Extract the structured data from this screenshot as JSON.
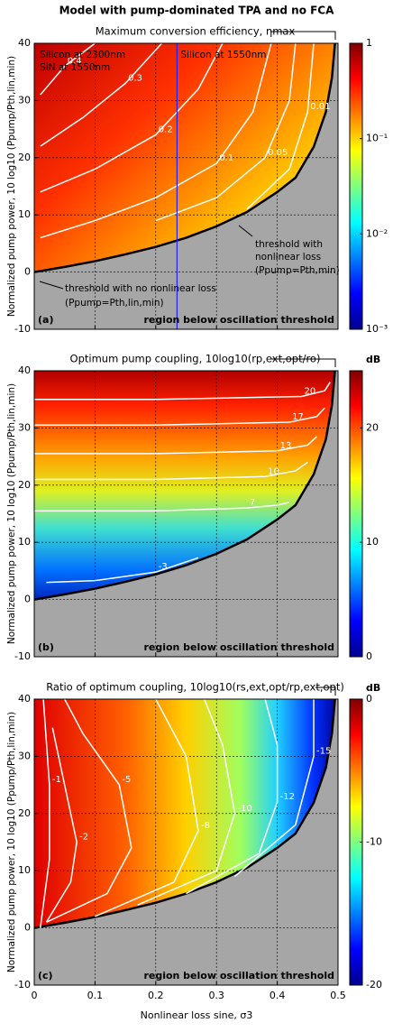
{
  "title": "Model with pump-dominated TPA and no FCA",
  "x_label": "Nonlinear loss sine, σ3",
  "chart_data": [
    {
      "type": "contour",
      "title": "Maximum conversion efficiency, ηmax",
      "y_label": "Normalized pump power, 10 log10 (Ppump/Pth,lin,min)",
      "xlim": [
        0,
        0.5
      ],
      "ylim": [
        -10,
        40
      ],
      "xticks": [
        0,
        0.1,
        0.2,
        0.3,
        0.4,
        0.5
      ],
      "yticks": [
        -10,
        0,
        10,
        20,
        30,
        40
      ],
      "grid": true,
      "colorbar": {
        "scale": "log",
        "lim": [
          0.001,
          1
        ],
        "ticks": [
          {
            "value": 0.001,
            "label": "10⁻³"
          },
          {
            "value": 0.01,
            "label": "10⁻²"
          },
          {
            "value": 0.1,
            "label": "10⁻¹"
          },
          1
        ]
      },
      "boundary": {
        "x": [
          0,
          0.05,
          0.1,
          0.15,
          0.2,
          0.25,
          0.3,
          0.35,
          0.4,
          0.43,
          0.46,
          0.48,
          0.49,
          0.495
        ],
        "y": [
          0,
          0.9,
          1.9,
          3.1,
          4.4,
          6,
          8,
          10.5,
          14,
          16.5,
          21.9,
          28,
          34,
          40
        ]
      },
      "contours": [
        {
          "level": 0.4,
          "x": [
            0.01,
            0.05,
            0.1
          ],
          "y": [
            31,
            36,
            40
          ]
        },
        {
          "level": 0.3,
          "x": [
            0.01,
            0.08,
            0.15,
            0.21
          ],
          "y": [
            22,
            27,
            33,
            40
          ]
        },
        {
          "level": 0.2,
          "x": [
            0.01,
            0.1,
            0.2,
            0.27,
            0.31
          ],
          "y": [
            14,
            18,
            24,
            32,
            40
          ]
        },
        {
          "level": 0.1,
          "x": [
            0.01,
            0.1,
            0.2,
            0.3,
            0.36,
            0.39
          ],
          "y": [
            6,
            9,
            13,
            19,
            28,
            40
          ]
        },
        {
          "level": 0.05,
          "x": [
            0.2,
            0.3,
            0.38,
            0.42,
            0.43
          ],
          "y": [
            9,
            13,
            20,
            30,
            40
          ]
        },
        {
          "level": 0.01,
          "x": [
            0.35,
            0.42,
            0.45,
            0.46
          ],
          "y": [
            11,
            18,
            28,
            40
          ]
        }
      ],
      "reference_line": {
        "x": 0.235,
        "label": "Silicon at 1550nm"
      },
      "annotations": [
        "Silicon at 2300nm",
        "SiN at 1550nm",
        "threshold with",
        "nonlinear loss",
        "(Ppump=Pth,min)",
        "threshold with no nonlinear loss",
        "(Ppump=Pth,lin,min)"
      ],
      "panel_label": "(a)",
      "region_label": "region below oscillation threshold"
    },
    {
      "type": "contour",
      "title": "Optimum pump coupling, 10log10(rp,ext,opt/ro)",
      "y_label": "Normalized pump power, 10 log10 (Ppump/Pth,lin,min)",
      "xlim": [
        0,
        0.5
      ],
      "ylim": [
        -10,
        40
      ],
      "xticks": [
        0,
        0.1,
        0.2,
        0.3,
        0.4,
        0.5
      ],
      "yticks": [
        -10,
        0,
        10,
        20,
        30,
        40
      ],
      "grid": true,
      "colorbar": {
        "scale": "linear",
        "lim": [
          0,
          25
        ],
        "ticks": [
          0,
          10,
          20
        ],
        "unit": "dB"
      },
      "boundary": {
        "x": [
          0,
          0.05,
          0.1,
          0.15,
          0.2,
          0.25,
          0.3,
          0.35,
          0.4,
          0.43,
          0.46,
          0.48,
          0.49,
          0.495
        ],
        "y": [
          0,
          0.9,
          1.9,
          3.1,
          4.4,
          6,
          8,
          10.5,
          14,
          16.5,
          21.9,
          28,
          34,
          40
        ]
      },
      "contours": [
        {
          "level": -3,
          "x": [
            0.02,
            0.1,
            0.2,
            0.27
          ],
          "y": [
            3,
            3.3,
            4.8,
            7.3
          ]
        },
        {
          "level": 7,
          "x": [
            0,
            0.2,
            0.35,
            0.4,
            0.42
          ],
          "y": [
            15.5,
            15.5,
            16,
            16.5,
            17
          ]
        },
        {
          "level": 10,
          "x": [
            0,
            0.2,
            0.38,
            0.43,
            0.45
          ],
          "y": [
            21,
            21,
            21.5,
            22.5,
            24
          ]
        },
        {
          "level": 13,
          "x": [
            0,
            0.2,
            0.4,
            0.45,
            0.465
          ],
          "y": [
            25.5,
            25.5,
            26,
            27,
            28.5
          ]
        },
        {
          "level": 17,
          "x": [
            0,
            0.2,
            0.42,
            0.465,
            0.478
          ],
          "y": [
            30.5,
            30.5,
            31,
            32,
            33.5
          ]
        },
        {
          "level": 20,
          "x": [
            0,
            0.2,
            0.44,
            0.478,
            0.487
          ],
          "y": [
            35,
            35,
            35.5,
            36.5,
            38
          ]
        }
      ],
      "panel_label": "(b)",
      "region_label": "region below oscillation threshold"
    },
    {
      "type": "contour",
      "title": "Ratio of optimum coupling, 10log10(rs,ext,opt/rp,ext,opt)",
      "y_label": "Normalized pump power, 10 log10 (Ppump/Pth,lin,min)",
      "xlim": [
        0,
        0.5
      ],
      "ylim": [
        -10,
        40
      ],
      "xticks": [
        0,
        0.1,
        0.2,
        0.3,
        0.4,
        0.5
      ],
      "yticks": [
        -10,
        0,
        10,
        20,
        30,
        40
      ],
      "grid": true,
      "colorbar": {
        "scale": "linear",
        "lim": [
          -20,
          0
        ],
        "ticks": [
          -20,
          -10,
          0
        ],
        "unit": "dB"
      },
      "boundary": {
        "x": [
          0,
          0.05,
          0.1,
          0.15,
          0.2,
          0.25,
          0.3,
          0.35,
          0.4,
          0.43,
          0.46,
          0.48,
          0.49,
          0.495
        ],
        "y": [
          0,
          0.9,
          1.9,
          3.1,
          4.4,
          6,
          8,
          10.5,
          14,
          16.5,
          21.9,
          28,
          34,
          40
        ]
      },
      "contours": [
        {
          "level": -1,
          "x": [
            0.01,
            0.025,
            0.025,
            0.015
          ],
          "y": [
            0,
            12,
            25,
            40
          ]
        },
        {
          "level": -2,
          "x": [
            0.02,
            0.06,
            0.07,
            0.05,
            0.03
          ],
          "y": [
            1,
            8,
            15,
            25,
            35
          ]
        },
        {
          "level": -5,
          "x": [
            0.02,
            0.12,
            0.16,
            0.14,
            0.08,
            0.05
          ],
          "y": [
            1,
            6,
            14,
            25,
            34,
            40
          ]
        },
        {
          "level": -8,
          "x": [
            0.1,
            0.23,
            0.27,
            0.25,
            0.2
          ],
          "y": [
            2,
            8,
            17,
            30,
            40
          ]
        },
        {
          "level": -10,
          "x": [
            0.17,
            0.3,
            0.33,
            0.31,
            0.28
          ],
          "y": [
            4,
            10,
            20,
            32,
            40
          ]
        },
        {
          "level": -12,
          "x": [
            0.25,
            0.37,
            0.4,
            0.4,
            0.38
          ],
          "y": [
            6,
            13,
            22,
            32,
            40
          ]
        },
        {
          "level": -15,
          "x": [
            0.33,
            0.43,
            0.46,
            0.46
          ],
          "y": [
            9,
            18,
            30,
            40
          ]
        }
      ],
      "panel_label": "(c)",
      "region_label": "region below oscillation threshold"
    }
  ]
}
